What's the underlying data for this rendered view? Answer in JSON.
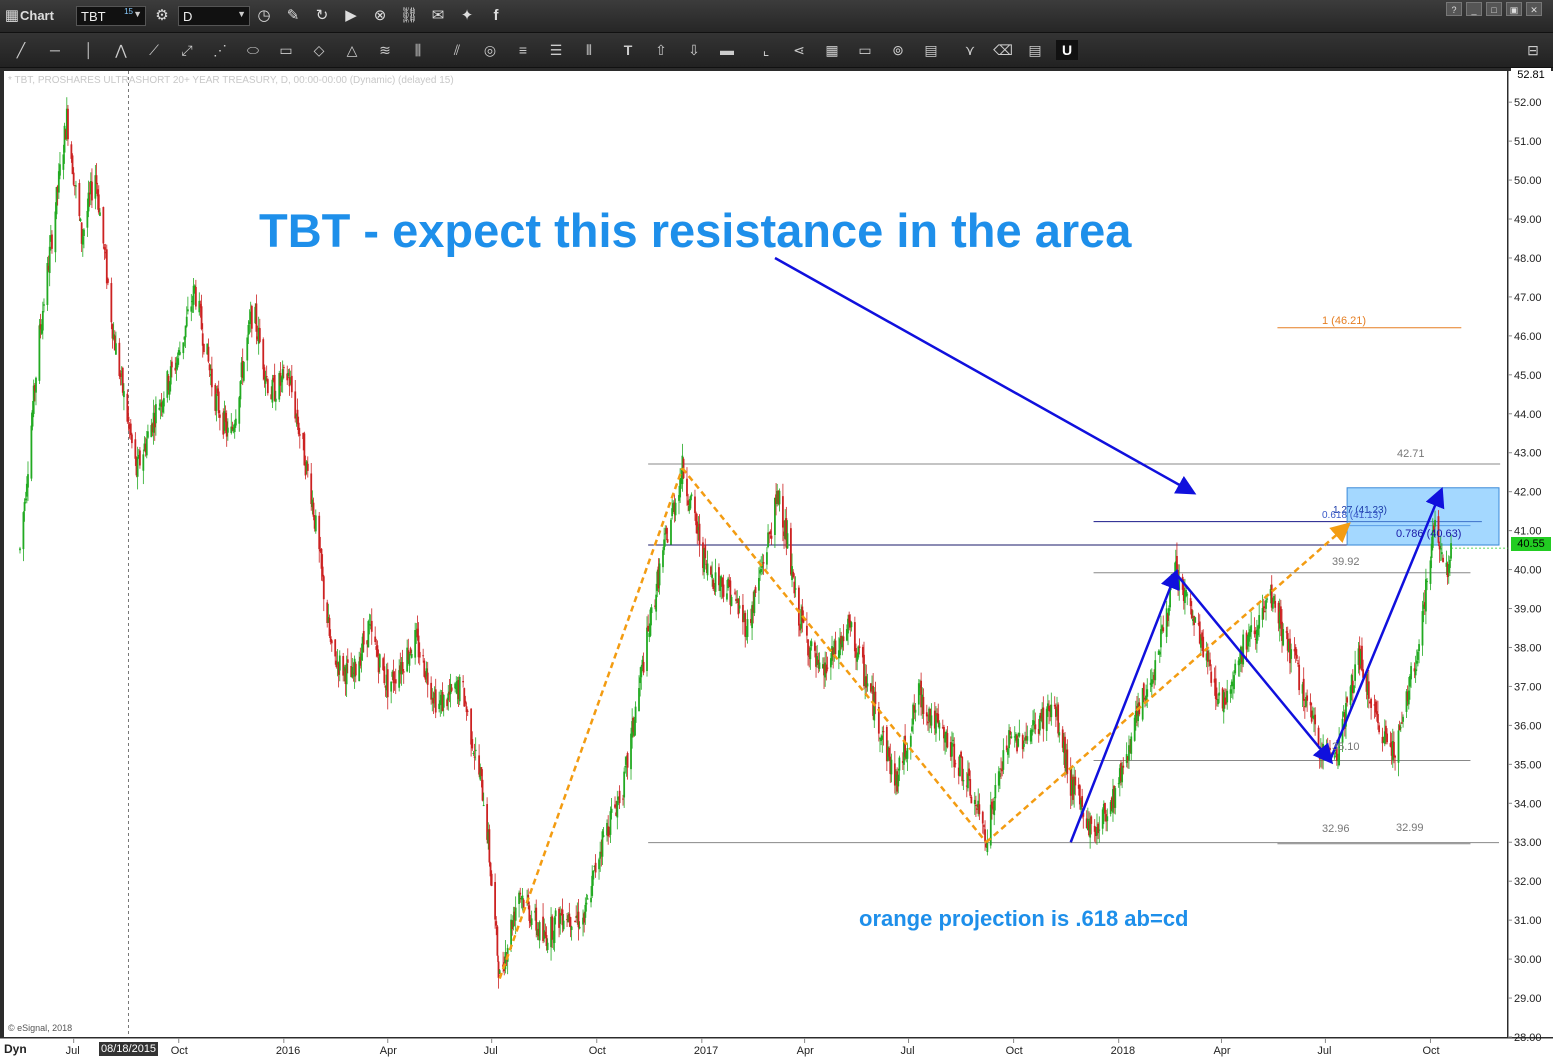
{
  "app": {
    "title": "Chart",
    "symbol": "TBT",
    "symbol_superscript": "15",
    "interval": "D"
  },
  "chart_header": "* TBT, PROSHARES ULTRASHORT 20+ YEAR TREASURY, D, 00:00-00:00 (Dynamic) (delayed 15)",
  "annotations": {
    "headline": "TBT - expect this resistance in the area",
    "note": "orange projection is .618 ab=cd",
    "copyright": "© eSignal, 2018",
    "dyn_label": "Dyn",
    "cursor_date": "08/18/2015"
  },
  "levels": {
    "l4271": "42.71",
    "l3992": "39.92",
    "l3510": "35.10",
    "l3296": "32.96",
    "l3299": "32.99",
    "l4621": "1 (46.21)",
    "l4063": "0.786 (40.63)",
    "l4123": "1.27 (41.23)",
    "l4113": "0.618 (41.13)",
    "current": "40.55",
    "top_price": "52.81"
  },
  "colors": {
    "up": "#22aa22",
    "down": "#cc2222",
    "orange": "#f39c12",
    "blue_arrow": "#1010dd",
    "text_blue": "#1e8fea",
    "zone": "#5ab8ff"
  },
  "chart_data": {
    "type": "candlestick",
    "title": "* TBT, PROSHARES ULTRASHORT 20+ YEAR TREASURY, D, 00:00-00:00 (Dynamic) (delayed 15)",
    "ylim": [
      28,
      52.8
    ],
    "y_ticks": [
      28,
      29,
      30,
      31,
      32,
      33,
      34,
      35,
      36,
      37,
      38,
      39,
      40,
      41,
      42,
      43,
      44,
      45,
      46,
      47,
      48,
      49,
      50,
      51,
      52
    ],
    "y_tick_labels": [
      "28.00",
      "29.00",
      "30.00",
      "31.00",
      "32.00",
      "33.00",
      "34.00",
      "35.00",
      "36.00",
      "37.00",
      "38.00",
      "39.00",
      "40.00",
      "41.00",
      "42.00",
      "43.00",
      "44.00",
      "45.00",
      "46.00",
      "47.00",
      "48.00",
      "49.00",
      "50.00",
      "51.00",
      "52.00"
    ],
    "x_tick_labels": [
      "Jul",
      "Oct",
      "2016",
      "Apr",
      "Jul",
      "Oct",
      "2017",
      "Apr",
      "Jul",
      "Oct",
      "2018",
      "Apr",
      "Jul",
      "Oct"
    ],
    "x_tick_months": [
      "2015-07",
      "2015-10",
      "2016-01",
      "2016-04",
      "2016-07",
      "2016-10",
      "2017-01",
      "2017-04",
      "2017-07",
      "2017-10",
      "2018-01",
      "2018-04",
      "2018-07",
      "2018-10"
    ],
    "price_path": [
      [
        "2015-05-15",
        40.5
      ],
      [
        "2015-06-01",
        46.0
      ],
      [
        "2015-06-25",
        51.6
      ],
      [
        "2015-07-08",
        48.5
      ],
      [
        "2015-07-20",
        50.2
      ],
      [
        "2015-08-05",
        46.0
      ],
      [
        "2015-08-25",
        42.5
      ],
      [
        "2015-09-10",
        44.0
      ],
      [
        "2015-10-01",
        45.5
      ],
      [
        "2015-10-15",
        47.2
      ],
      [
        "2015-11-01",
        44.5
      ],
      [
        "2015-11-15",
        43.3
      ],
      [
        "2015-12-05",
        46.7
      ],
      [
        "2015-12-20",
        44.5
      ],
      [
        "2016-01-05",
        45.0
      ],
      [
        "2016-01-25",
        42.0
      ],
      [
        "2016-02-12",
        37.8
      ],
      [
        "2016-03-01",
        37.2
      ],
      [
        "2016-03-15",
        38.5
      ],
      [
        "2016-04-01",
        37.0
      ],
      [
        "2016-04-25",
        38.2
      ],
      [
        "2016-05-15",
        36.5
      ],
      [
        "2016-06-05",
        37.0
      ],
      [
        "2016-06-25",
        34.0
      ],
      [
        "2016-07-08",
        29.5
      ],
      [
        "2016-07-25",
        31.8
      ],
      [
        "2016-08-15",
        30.5
      ],
      [
        "2016-09-01",
        31.2
      ],
      [
        "2016-09-20",
        31.0
      ],
      [
        "2016-10-05",
        33.0
      ],
      [
        "2016-10-25",
        34.5
      ],
      [
        "2016-11-10",
        37.5
      ],
      [
        "2016-11-25",
        40.0
      ],
      [
        "2016-12-15",
        42.6
      ],
      [
        "2017-01-05",
        40.0
      ],
      [
        "2017-01-25",
        39.5
      ],
      [
        "2017-02-10",
        38.5
      ],
      [
        "2017-03-10",
        42.0
      ],
      [
        "2017-03-25",
        39.0
      ],
      [
        "2017-04-15",
        37.2
      ],
      [
        "2017-05-10",
        38.5
      ],
      [
        "2017-06-01",
        36.5
      ],
      [
        "2017-06-20",
        34.5
      ],
      [
        "2017-07-10",
        36.8
      ],
      [
        "2017-07-25",
        36.0
      ],
      [
        "2017-08-15",
        35.0
      ],
      [
        "2017-09-07",
        33.2
      ],
      [
        "2017-09-25",
        35.5
      ],
      [
        "2017-10-15",
        35.8
      ],
      [
        "2017-11-05",
        36.5
      ],
      [
        "2017-11-20",
        34.5
      ],
      [
        "2017-12-10",
        33.2
      ],
      [
        "2017-12-28",
        34.2
      ],
      [
        "2018-01-15",
        36.0
      ],
      [
        "2018-02-01",
        37.5
      ],
      [
        "2018-02-20",
        39.9
      ],
      [
        "2018-03-10",
        38.5
      ],
      [
        "2018-04-01",
        36.5
      ],
      [
        "2018-04-20",
        38.0
      ],
      [
        "2018-05-15",
        39.2
      ],
      [
        "2018-06-05",
        37.5
      ],
      [
        "2018-06-25",
        35.5
      ],
      [
        "2018-07-10",
        35.2
      ],
      [
        "2018-07-30",
        37.8
      ],
      [
        "2018-08-15",
        36.0
      ],
      [
        "2018-09-01",
        35.4
      ],
      [
        "2018-09-20",
        38.0
      ],
      [
        "2018-10-05",
        41.2
      ],
      [
        "2018-10-15",
        40.0
      ],
      [
        "2018-10-19",
        40.55
      ]
    ],
    "orange_projection": [
      [
        "2016-07-08",
        29.5
      ],
      [
        "2016-12-15",
        42.6
      ],
      [
        "2017-09-07",
        33.0
      ],
      [
        "2018-07-20",
        41.13
      ]
    ],
    "blue_pattern": [
      [
        "2017-11-20",
        33.0
      ],
      [
        "2018-02-20",
        39.9
      ],
      [
        "2018-07-05",
        35.1
      ],
      [
        "2018-10-10",
        42.0
      ]
    ],
    "horizontal_levels": [
      42.71,
      40.63,
      39.92,
      35.1,
      32.96,
      32.99,
      41.23,
      41.13,
      46.21
    ],
    "resistance_zone": {
      "from_date": "2018-07-20",
      "to_date": "2018-11-30",
      "low": 40.63,
      "high": 42.1
    },
    "current_price": 40.55
  }
}
